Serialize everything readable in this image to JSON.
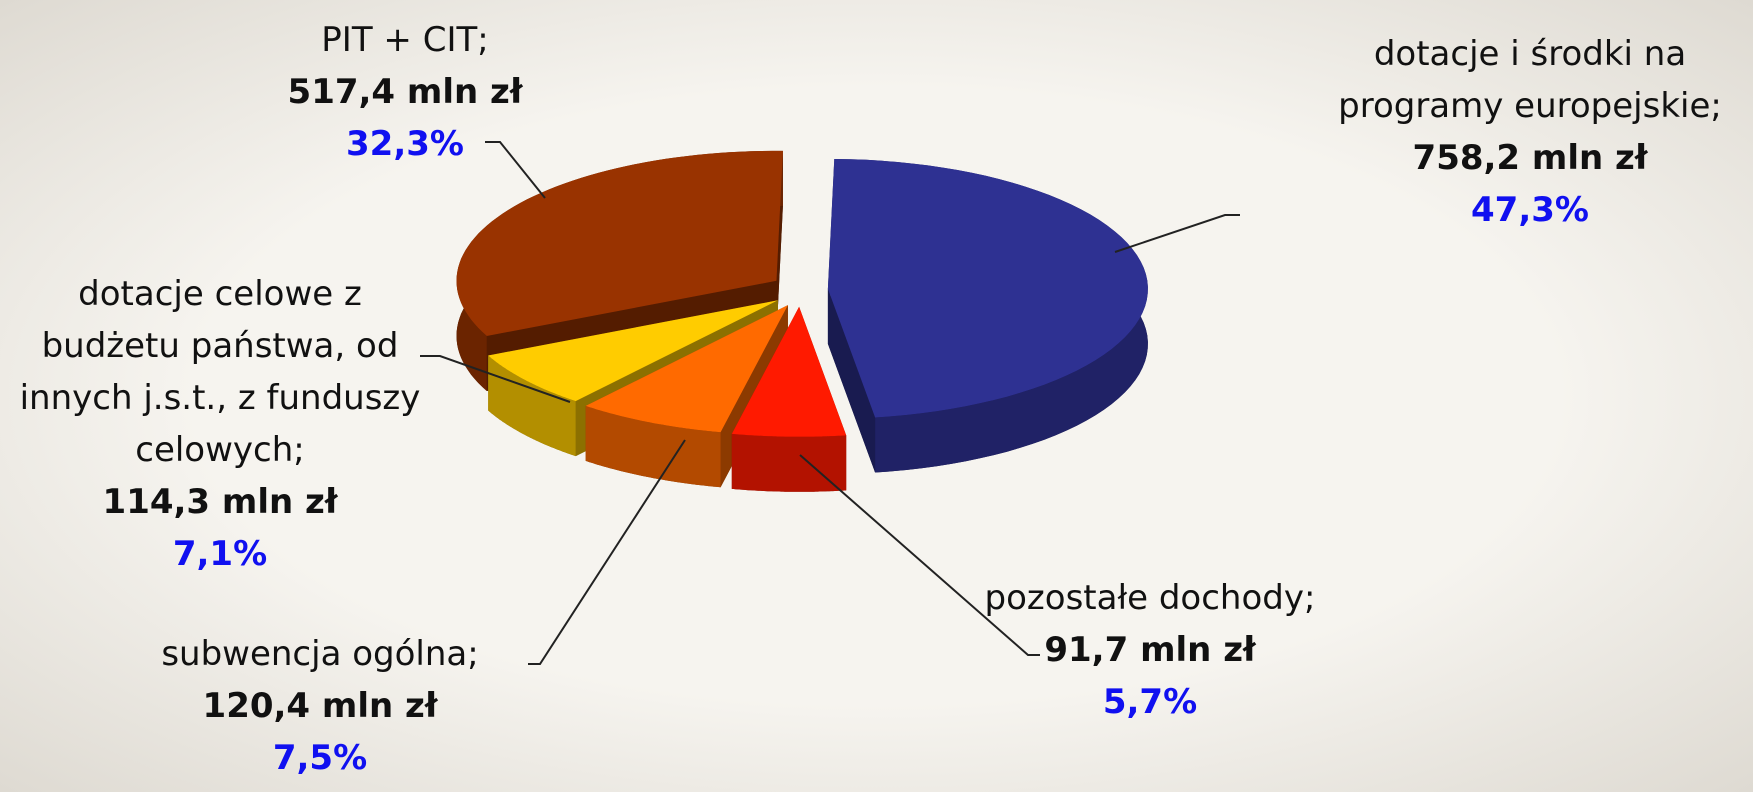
{
  "chart_data": {
    "type": "pie",
    "categories": [
      "dotacje i środki na programy europejskie;",
      "pozostałe dochody;",
      "subwencja ogólna;",
      "dotacje celowe z budżetu państwa, od innych j.s.t., z funduszy celowych;",
      "PIT + CIT;"
    ],
    "values": [
      758.2,
      91.7,
      120.4,
      114.3,
      517.4
    ],
    "value_labels": [
      "758,2 mln zł",
      "91,7 mln zł",
      "120,4 mln zł",
      "114,3 mln zł",
      "517,4 mln zł"
    ],
    "percentages": [
      47.3,
      5.7,
      7.5,
      7.1,
      32.3
    ],
    "percentage_labels": [
      "47,3%",
      "5,7%",
      "7,5%",
      "7,1%",
      "32,3%"
    ],
    "colors": [
      "#2e3192",
      "#ff1a00",
      "#ff6a00",
      "#ffcc00",
      "#993300"
    ]
  }
}
